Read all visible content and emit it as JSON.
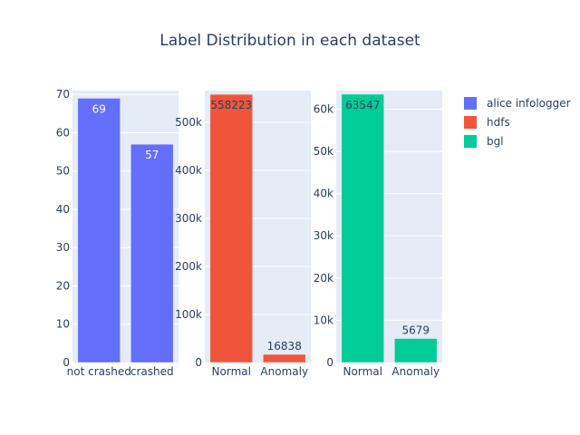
{
  "chart_data": {
    "type": "bar",
    "title": "Label Distribution in each dataset",
    "legend": {
      "position": "top-right",
      "entries": [
        "alice infologger",
        "hdfs",
        "bgl"
      ]
    },
    "grid": true,
    "subplots": [
      {
        "series_name": "alice infologger",
        "color": "#636efa",
        "categories": [
          "not crashed",
          "crashed"
        ],
        "values": [
          69,
          57
        ],
        "value_labels": [
          "69",
          "57"
        ],
        "ylim": [
          0,
          71
        ],
        "yticks": [
          0,
          10,
          20,
          30,
          40,
          50,
          60,
          70
        ],
        "ytick_labels": [
          "0",
          "10",
          "20",
          "30",
          "40",
          "50",
          "60",
          "70"
        ]
      },
      {
        "series_name": "hdfs",
        "color": "#ef553b",
        "categories": [
          "Normal",
          "Anomaly"
        ],
        "values": [
          558223,
          16838
        ],
        "value_labels": [
          "558223",
          "16838"
        ],
        "ylim": [
          0,
          566000
        ],
        "yticks": [
          0,
          100000,
          200000,
          300000,
          400000,
          500000
        ],
        "ytick_labels": [
          "0",
          "100k",
          "200k",
          "300k",
          "400k",
          "500k"
        ]
      },
      {
        "series_name": "bgl",
        "color": "#00cc96",
        "categories": [
          "Normal",
          "Anomaly"
        ],
        "values": [
          63547,
          5679
        ],
        "value_labels": [
          "63547",
          "5679"
        ],
        "ylim": [
          0,
          64400
        ],
        "yticks": [
          0,
          10000,
          20000,
          30000,
          40000,
          50000,
          60000
        ],
        "ytick_labels": [
          "0",
          "10k",
          "20k",
          "30k",
          "40k",
          "50k",
          "60k"
        ]
      }
    ]
  }
}
